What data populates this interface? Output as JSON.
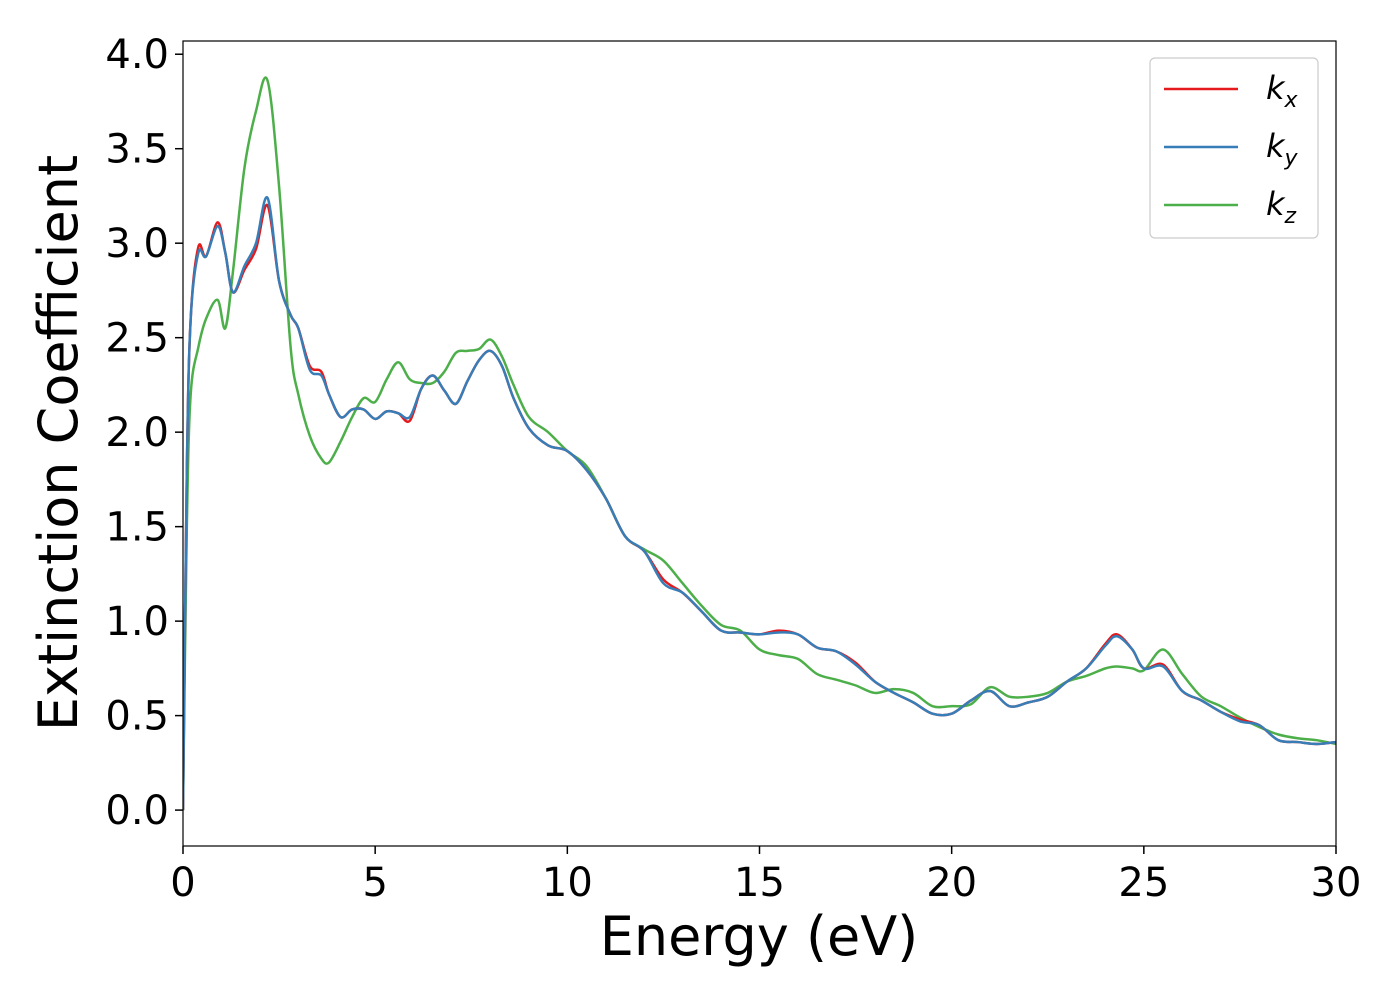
{
  "chart_data": {
    "type": "line",
    "xlabel": "Energy (eV)",
    "ylabel": "Extinction Coefficient",
    "x": [
      0,
      0.1,
      0.2,
      0.4,
      0.6,
      0.9,
      1.1,
      1.3,
      1.6,
      1.9,
      2.2,
      2.5,
      2.8,
      3.0,
      3.3,
      3.6,
      3.8,
      4.1,
      4.4,
      4.7,
      5.0,
      5.3,
      5.6,
      5.9,
      6.2,
      6.5,
      6.8,
      7.1,
      7.4,
      7.7,
      8.0,
      8.3,
      8.6,
      9.0,
      9.5,
      10,
      10.5,
      11,
      11.5,
      12,
      12.5,
      13,
      13.5,
      14,
      14.5,
      15,
      15.5,
      16,
      16.5,
      17,
      17.5,
      18,
      18.5,
      19,
      19.5,
      20,
      20.5,
      21,
      21.5,
      22,
      22.5,
      23,
      23.5,
      24,
      24.3,
      24.7,
      25,
      25.5,
      26,
      26.5,
      27,
      27.5,
      28,
      28.5,
      29,
      29.5,
      30
    ],
    "series": [
      {
        "name": "kx",
        "color": "#e41a1c",
        "values": [
          0.0,
          1.8,
          2.6,
          2.98,
          2.93,
          3.11,
          2.95,
          2.74,
          2.86,
          2.97,
          3.2,
          2.8,
          2.62,
          2.55,
          2.35,
          2.32,
          2.2,
          2.08,
          2.12,
          2.12,
          2.07,
          2.11,
          2.1,
          2.06,
          2.23,
          2.3,
          2.22,
          2.15,
          2.27,
          2.38,
          2.43,
          2.35,
          2.18,
          2.02,
          1.93,
          1.9,
          1.8,
          1.65,
          1.45,
          1.37,
          1.22,
          1.15,
          1.05,
          0.95,
          0.94,
          0.93,
          0.95,
          0.93,
          0.86,
          0.84,
          0.78,
          0.68,
          0.62,
          0.57,
          0.51,
          0.51,
          0.58,
          0.63,
          0.55,
          0.57,
          0.6,
          0.68,
          0.75,
          0.88,
          0.93,
          0.85,
          0.75,
          0.77,
          0.63,
          0.58,
          0.52,
          0.48,
          0.45,
          0.37,
          0.36,
          0.35,
          0.36
        ]
      },
      {
        "name": "ky",
        "color": "#377eb8",
        "values": [
          0.0,
          1.8,
          2.6,
          2.95,
          2.93,
          3.09,
          2.95,
          2.74,
          2.88,
          3.0,
          3.24,
          2.8,
          2.62,
          2.55,
          2.33,
          2.3,
          2.2,
          2.08,
          2.12,
          2.12,
          2.07,
          2.11,
          2.1,
          2.08,
          2.23,
          2.3,
          2.22,
          2.15,
          2.27,
          2.38,
          2.43,
          2.35,
          2.18,
          2.02,
          1.93,
          1.9,
          1.8,
          1.65,
          1.45,
          1.37,
          1.2,
          1.15,
          1.05,
          0.95,
          0.94,
          0.93,
          0.94,
          0.93,
          0.86,
          0.84,
          0.77,
          0.68,
          0.62,
          0.57,
          0.51,
          0.51,
          0.58,
          0.63,
          0.55,
          0.57,
          0.6,
          0.68,
          0.75,
          0.87,
          0.92,
          0.85,
          0.75,
          0.76,
          0.63,
          0.58,
          0.52,
          0.47,
          0.45,
          0.37,
          0.36,
          0.35,
          0.36
        ]
      },
      {
        "name": "kz",
        "color": "#4daf4a",
        "values": [
          0.0,
          1.5,
          2.2,
          2.45,
          2.6,
          2.7,
          2.55,
          2.85,
          3.4,
          3.7,
          3.86,
          3.3,
          2.45,
          2.2,
          1.98,
          1.86,
          1.84,
          1.95,
          2.08,
          2.18,
          2.16,
          2.28,
          2.37,
          2.28,
          2.26,
          2.26,
          2.32,
          2.42,
          2.43,
          2.44,
          2.49,
          2.4,
          2.25,
          2.08,
          2.0,
          1.9,
          1.82,
          1.65,
          1.45,
          1.38,
          1.32,
          1.2,
          1.08,
          0.98,
          0.95,
          0.85,
          0.82,
          0.8,
          0.72,
          0.69,
          0.66,
          0.62,
          0.64,
          0.62,
          0.55,
          0.55,
          0.56,
          0.65,
          0.6,
          0.6,
          0.62,
          0.68,
          0.71,
          0.75,
          0.76,
          0.75,
          0.74,
          0.85,
          0.72,
          0.6,
          0.55,
          0.49,
          0.44,
          0.4,
          0.38,
          0.37,
          0.35
        ]
      }
    ],
    "xlim": [
      0,
      30
    ],
    "xticks": [
      0,
      5,
      10,
      15,
      20,
      25,
      30
    ],
    "ylim": [
      -0.19,
      4.07
    ],
    "yticks": [
      {
        "value": 0,
        "label": "0.0"
      },
      0.5,
      {
        "value": 1,
        "label": "1.0"
      },
      1.5,
      {
        "value": 2,
        "label": "2.0"
      },
      2.5,
      {
        "value": 3,
        "label": "3.0"
      },
      3.5,
      {
        "value": 4,
        "label": "4.0"
      }
    ],
    "legend": "upper right"
  }
}
